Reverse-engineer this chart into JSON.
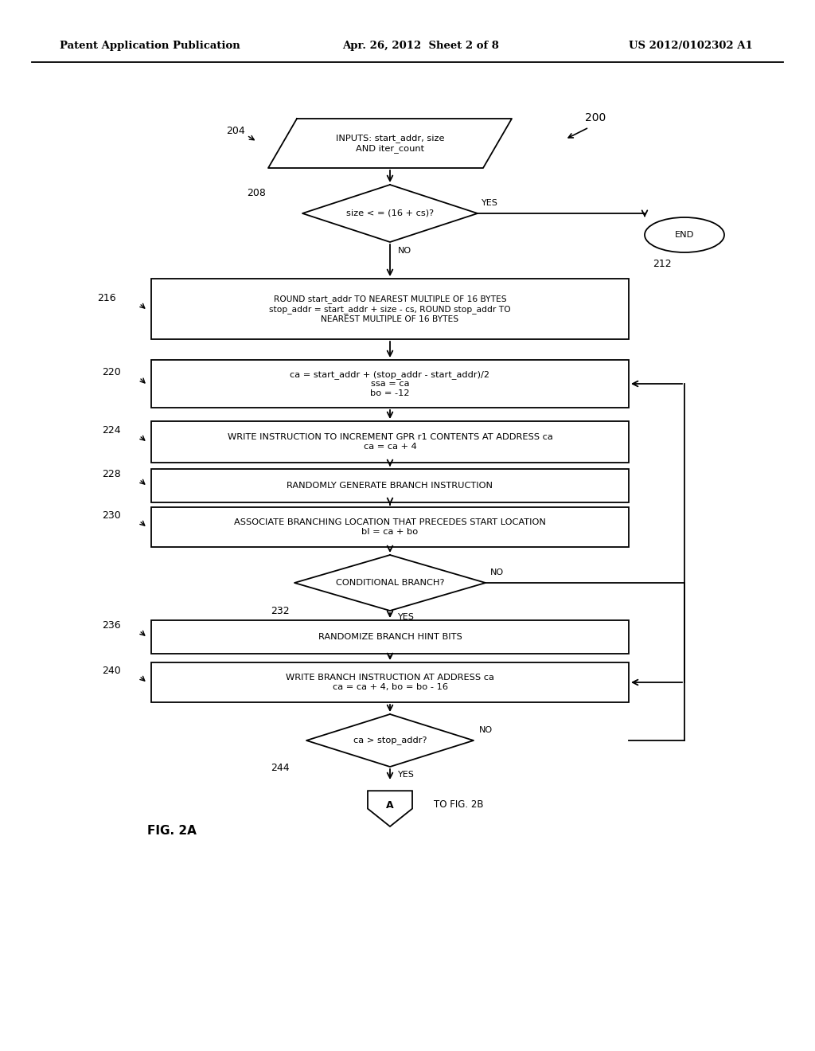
{
  "header_left": "Patent Application Publication",
  "header_center": "Apr. 26, 2012  Sheet 2 of 8",
  "header_right": "US 2012/0102302 A1",
  "fig_label": "FIG. 2A",
  "background": "#ffffff",
  "line_color": "#000000",
  "text_color": "#000000"
}
